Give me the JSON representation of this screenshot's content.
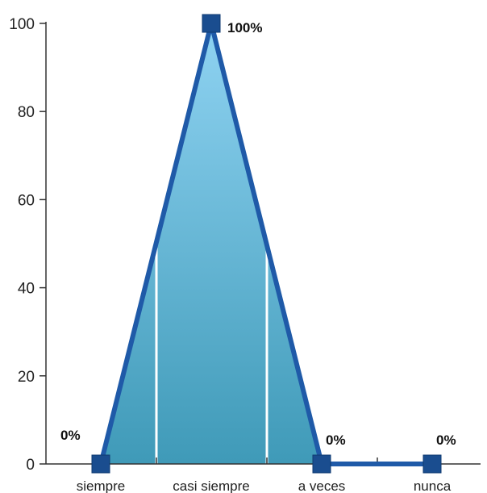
{
  "chart_data": {
    "type": "area",
    "categories": [
      "siempre",
      "casi siempre",
      "a veces",
      "nunca"
    ],
    "values": [
      0,
      100,
      0,
      0
    ],
    "data_labels": [
      "0%",
      "100%",
      "0%",
      "0%"
    ],
    "yticks": [
      0,
      20,
      40,
      60,
      80,
      100
    ],
    "ylim": [
      0,
      100
    ],
    "grid": false,
    "colors": {
      "line": "#1f5aa8",
      "marker": "#1a4d8f",
      "fill_top": "#8fd3f2",
      "fill_bottom": "#3f9ab8",
      "axis": "#333333"
    }
  }
}
